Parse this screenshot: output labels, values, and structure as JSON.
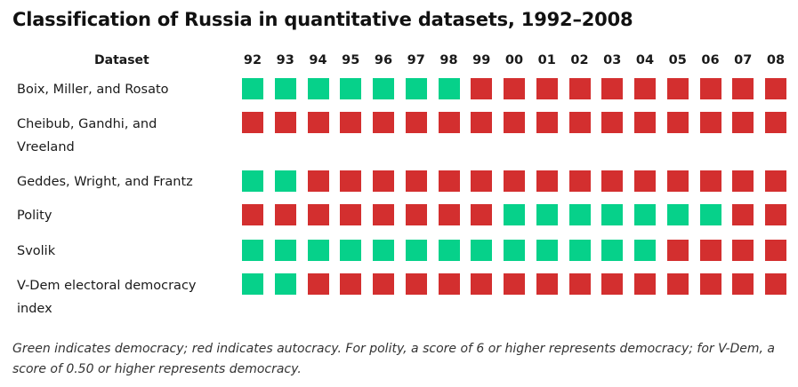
{
  "chart_data": {
    "type": "table",
    "title": "Classification of Russia in quantitative datasets, 1992–2008",
    "column_header": "Dataset",
    "years": [
      "92",
      "93",
      "94",
      "95",
      "96",
      "97",
      "98",
      "99",
      "00",
      "01",
      "02",
      "03",
      "04",
      "05",
      "06",
      "07",
      "08"
    ],
    "legend": {
      "D": "democracy",
      "A": "autocracy"
    },
    "colors": {
      "democracy": "#06d18a",
      "autocracy": "#d32f2f"
    },
    "rows": [
      {
        "label": "Boix, Miller, and Rosato",
        "values": [
          "D",
          "D",
          "D",
          "D",
          "D",
          "D",
          "D",
          "A",
          "A",
          "A",
          "A",
          "A",
          "A",
          "A",
          "A",
          "A",
          "A"
        ]
      },
      {
        "label": "Cheibub, Gandhi, and Vreeland",
        "values": [
          "A",
          "A",
          "A",
          "A",
          "A",
          "A",
          "A",
          "A",
          "A",
          "A",
          "A",
          "A",
          "A",
          "A",
          "A",
          "A",
          "A"
        ]
      },
      {
        "label": "Geddes, Wright, and Frantz",
        "values": [
          "D",
          "D",
          "A",
          "A",
          "A",
          "A",
          "A",
          "A",
          "A",
          "A",
          "A",
          "A",
          "A",
          "A",
          "A",
          "A",
          "A"
        ]
      },
      {
        "label": "Polity",
        "values": [
          "A",
          "A",
          "A",
          "A",
          "A",
          "A",
          "A",
          "A",
          "D",
          "D",
          "D",
          "D",
          "D",
          "D",
          "D",
          "A",
          "A"
        ]
      },
      {
        "label": "Svolik",
        "values": [
          "D",
          "D",
          "D",
          "D",
          "D",
          "D",
          "D",
          "D",
          "D",
          "D",
          "D",
          "D",
          "D",
          "A",
          "A",
          "A",
          "A"
        ]
      },
      {
        "label": "V-Dem electoral democracy index",
        "values": [
          "D",
          "D",
          "A",
          "A",
          "A",
          "A",
          "A",
          "A",
          "A",
          "A",
          "A",
          "A",
          "A",
          "A",
          "A",
          "A",
          "A"
        ]
      }
    ],
    "footnote": "Green indicates democracy; red indicates autocracy. For polity, a score of 6 or higher represents democracy; for V-Dem, a score of 0.50 or higher represents democracy."
  }
}
